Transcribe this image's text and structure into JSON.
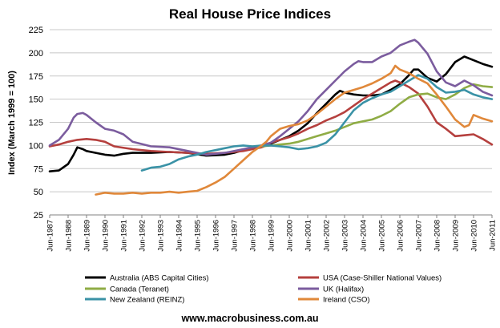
{
  "chart_data": {
    "type": "line",
    "title": "Real House Price Indices",
    "ylabel": "Index (March 1999 = 100)",
    "xlabel": "",
    "ylim": [
      25,
      225
    ],
    "yticks": [
      25,
      50,
      75,
      100,
      125,
      150,
      175,
      200,
      225
    ],
    "xlim": [
      1987.5,
      2011.5
    ],
    "x_tick_labels": [
      "Jun-1987",
      "Jun-1988",
      "Jun-1989",
      "Jun-1990",
      "Jun-1991",
      "Jun-1992",
      "Jun-1993",
      "Jun-1994",
      "Jun-1995",
      "Jun-1996",
      "Jun-1997",
      "Jun-1998",
      "Jun-1999",
      "Jun-2000",
      "Jun-2001",
      "Jun-2002",
      "Jun-2003",
      "Jun-2004",
      "Jun-2005",
      "Jun-2006",
      "Jun-2007",
      "Jun-2008",
      "Jun-2009",
      "Jun-2010",
      "Jun-2011"
    ],
    "grid": "horizontal",
    "legend_position": "bottom",
    "series": [
      {
        "name": "Australia (ABS Capital Cities)",
        "color": "#000000",
        "x": [
          1987.5,
          1988.0,
          1988.5,
          1988.8,
          1989.0,
          1989.3,
          1989.5,
          1990.0,
          1990.5,
          1991.0,
          1991.5,
          1992.0,
          1993.0,
          1994.0,
          1995.0,
          1996.0,
          1997.0,
          1997.5,
          1998.0,
          1998.5,
          1999.0,
          1999.25,
          1999.5,
          2000.0,
          2000.5,
          2001.0,
          2001.5,
          2002.0,
          2002.5,
          2003.0,
          2003.25,
          2003.5,
          2004.0,
          2004.5,
          2005.0,
          2005.5,
          2006.0,
          2006.5,
          2007.0,
          2007.25,
          2007.5,
          2008.0,
          2008.5,
          2009.0,
          2009.5,
          2010.0,
          2010.5,
          2011.0,
          2011.5
        ],
        "y": [
          72,
          73,
          80,
          90,
          98,
          96,
          94,
          92,
          90,
          89,
          91,
          92,
          92,
          93,
          92,
          89,
          90,
          92,
          95,
          98,
          99,
          100,
          102,
          106,
          110,
          116,
          124,
          135,
          145,
          155,
          159,
          157,
          155,
          154,
          154,
          155,
          160,
          166,
          176,
          182,
          182,
          173,
          169,
          177,
          190,
          196,
          192,
          188,
          185
        ]
      },
      {
        "name": "USA (Case-Shiller National Values)",
        "color": "#b5403e",
        "x": [
          1987.5,
          1988.0,
          1988.5,
          1989.0,
          1989.5,
          1990.0,
          1990.5,
          1991.0,
          1992.0,
          1993.0,
          1994.0,
          1995.0,
          1996.0,
          1997.0,
          1998.0,
          1998.5,
          1999.0,
          1999.25,
          1999.5,
          2000.0,
          2000.5,
          2001.0,
          2001.5,
          2002.0,
          2002.5,
          2003.0,
          2003.5,
          2004.0,
          2004.5,
          2005.0,
          2005.5,
          2006.0,
          2006.25,
          2006.5,
          2007.0,
          2007.5,
          2008.0,
          2008.5,
          2009.0,
          2009.5,
          2010.0,
          2010.5,
          2011.0,
          2011.5
        ],
        "y": [
          99,
          101,
          104,
          106,
          107,
          106,
          104,
          99,
          96,
          94,
          93,
          92,
          91,
          92,
          94,
          96,
          98,
          100,
          103,
          106,
          109,
          113,
          118,
          122,
          127,
          131,
          136,
          143,
          150,
          156,
          162,
          168,
          170,
          168,
          163,
          156,
          142,
          125,
          118,
          110,
          111,
          112,
          107,
          101
        ]
      },
      {
        "name": "Canada (Teranet)",
        "color": "#8fac45",
        "x": [
          1999.0,
          1999.5,
          2000.0,
          2000.5,
          2001.0,
          2001.5,
          2002.0,
          2002.5,
          2003.0,
          2003.5,
          2004.0,
          2004.5,
          2005.0,
          2005.5,
          2006.0,
          2006.5,
          2007.0,
          2007.5,
          2008.0,
          2008.5,
          2009.0,
          2009.5,
          2010.0,
          2010.5,
          2011.0,
          2011.5
        ],
        "y": [
          99,
          100,
          101,
          102,
          104,
          107,
          110,
          113,
          116,
          120,
          124,
          126,
          128,
          132,
          137,
          145,
          152,
          155,
          156,
          152,
          150,
          155,
          162,
          166,
          164,
          163
        ]
      },
      {
        "name": "UK (Halifax)",
        "color": "#7b5c9e",
        "x": [
          1987.5,
          1988.0,
          1988.5,
          1988.8,
          1989.0,
          1989.3,
          1989.5,
          1990.0,
          1990.5,
          1991.0,
          1991.5,
          1992.0,
          1993.0,
          1994.0,
          1995.0,
          1996.0,
          1997.0,
          1998.0,
          1999.0,
          1999.5,
          2000.0,
          2000.5,
          2001.0,
          2001.5,
          2002.0,
          2002.5,
          2003.0,
          2003.5,
          2004.0,
          2004.25,
          2004.5,
          2005.0,
          2005.5,
          2006.0,
          2006.5,
          2007.0,
          2007.3,
          2007.5,
          2008.0,
          2008.5,
          2009.0,
          2009.5,
          2010.0,
          2010.5,
          2011.0,
          2011.5
        ],
        "y": [
          100,
          106,
          118,
          130,
          134,
          135,
          133,
          125,
          118,
          116,
          112,
          104,
          99,
          98,
          94,
          90,
          92,
          96,
          100,
          103,
          110,
          118,
          126,
          137,
          150,
          160,
          170,
          180,
          188,
          191,
          190,
          190,
          196,
          200,
          208,
          212,
          214,
          211,
          199,
          180,
          168,
          164,
          170,
          165,
          158,
          154
        ]
      },
      {
        "name": "New Zealand (REINZ)",
        "color": "#3a92a6",
        "x": [
          1992.5,
          1993.0,
          1993.5,
          1994.0,
          1994.5,
          1995.0,
          1995.5,
          1996.0,
          1996.5,
          1997.0,
          1997.5,
          1998.0,
          1998.5,
          1999.0,
          1999.5,
          2000.0,
          2000.5,
          2001.0,
          2001.5,
          2002.0,
          2002.5,
          2003.0,
          2003.5,
          2004.0,
          2004.5,
          2005.0,
          2005.5,
          2006.0,
          2006.5,
          2007.0,
          2007.5,
          2008.0,
          2008.5,
          2009.0,
          2009.5,
          2010.0,
          2010.5,
          2011.0,
          2011.5
        ],
        "y": [
          73,
          76,
          77,
          80,
          85,
          88,
          90,
          93,
          95,
          97,
          99,
          100,
          99,
          100,
          100,
          99,
          98,
          96,
          97,
          99,
          103,
          112,
          125,
          138,
          146,
          151,
          155,
          158,
          164,
          170,
          176,
          172,
          163,
          157,
          158,
          160,
          155,
          152,
          150
        ]
      },
      {
        "name": "Ireland (CSO)",
        "color": "#e0883a",
        "x": [
          1990.0,
          1990.5,
          1991.0,
          1991.5,
          1992.0,
          1992.5,
          1993.0,
          1993.5,
          1994.0,
          1994.5,
          1995.0,
          1995.5,
          1996.0,
          1996.5,
          1997.0,
          1997.5,
          1998.0,
          1998.5,
          1999.0,
          1999.25,
          1999.5,
          2000.0,
          2000.5,
          2001.0,
          2001.5,
          2002.0,
          2002.5,
          2003.0,
          2003.5,
          2004.0,
          2004.5,
          2005.0,
          2005.5,
          2006.0,
          2006.25,
          2006.5,
          2007.0,
          2007.5,
          2008.0,
          2008.5,
          2009.0,
          2009.5,
          2010.0,
          2010.25,
          2010.5,
          2011.0,
          2011.5
        ],
        "y": [
          47,
          49,
          48,
          48,
          49,
          48,
          49,
          49,
          50,
          49,
          50,
          51,
          55,
          60,
          66,
          75,
          84,
          93,
          100,
          104,
          110,
          118,
          121,
          123,
          127,
          134,
          142,
          150,
          157,
          160,
          163,
          167,
          172,
          178,
          186,
          182,
          178,
          172,
          167,
          155,
          142,
          128,
          120,
          122,
          133,
          129,
          126
        ]
      }
    ]
  },
  "footer": {
    "source": "www.macrobusiness.com.au"
  }
}
